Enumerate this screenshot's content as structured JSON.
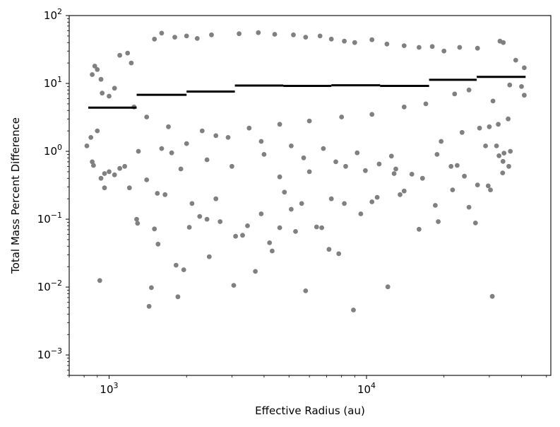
{
  "chart_data": {
    "type": "scatter",
    "title": "",
    "xlabel": "Effective Radius (au)",
    "ylabel": "Total Mass Percent Difference",
    "xscale": "log",
    "yscale": "log",
    "xlim": [
      700,
      52000
    ],
    "ylim": [
      0.0005,
      100
    ],
    "x_ticks": [
      {
        "value": 1000,
        "base": "10",
        "exp": "3"
      },
      {
        "value": 10000,
        "base": "10",
        "exp": "4"
      }
    ],
    "y_ticks": [
      {
        "value": 100,
        "base": "10",
        "exp": "2"
      },
      {
        "value": 10,
        "base": "10",
        "exp": "1"
      },
      {
        "value": 1,
        "base": "10",
        "exp": "0"
      },
      {
        "value": 0.1,
        "base": "10",
        "exp": "−1"
      },
      {
        "value": 0.01,
        "base": "10",
        "exp": "−2"
      },
      {
        "value": 0.001,
        "base": "10",
        "exp": "−3"
      }
    ],
    "grid": false,
    "point_color": "#808080",
    "median_line_color": "#000000",
    "series": [
      {
        "kind": "scatter",
        "points": [
          [
            920,
            0.0125
          ],
          [
            1430,
            0.0052
          ],
          [
            1460,
            0.0098
          ],
          [
            1850,
            0.0072
          ],
          [
            3050,
            0.0106
          ],
          [
            5800,
            0.0088
          ],
          [
            8900,
            0.0046
          ],
          [
            12100,
            0.0101
          ],
          [
            30800,
            0.0073
          ],
          [
            1820,
            0.021
          ],
          [
            1950,
            0.018
          ],
          [
            3700,
            0.017
          ],
          [
            2450,
            0.028
          ],
          [
            4300,
            0.034
          ],
          [
            7150,
            0.036
          ],
          [
            7800,
            0.031
          ],
          [
            1550,
            0.043
          ],
          [
            3100,
            0.056
          ],
          [
            3300,
            0.058
          ],
          [
            4200,
            0.045
          ],
          [
            1280,
            0.1
          ],
          [
            1290,
            0.087
          ],
          [
            1500,
            0.072
          ],
          [
            2050,
            0.076
          ],
          [
            2250,
            0.11
          ],
          [
            2400,
            0.1
          ],
          [
            2700,
            0.092
          ],
          [
            3450,
            0.08
          ],
          [
            4600,
            0.075
          ],
          [
            5300,
            0.066
          ],
          [
            6400,
            0.077
          ],
          [
            6700,
            0.075
          ],
          [
            16000,
            0.071
          ],
          [
            18500,
            0.16
          ],
          [
            19000,
            0.092
          ],
          [
            25000,
            0.15
          ],
          [
            26500,
            0.088
          ],
          [
            29700,
            0.31
          ],
          [
            30300,
            0.27
          ],
          [
            27000,
            0.32
          ],
          [
            9500,
            0.12
          ],
          [
            10500,
            0.18
          ],
          [
            11000,
            0.21
          ],
          [
            13500,
            0.23
          ],
          [
            14000,
            0.26
          ],
          [
            7300,
            0.2
          ],
          [
            8200,
            0.17
          ],
          [
            4800,
            0.25
          ],
          [
            5100,
            0.14
          ],
          [
            5600,
            0.17
          ],
          [
            3900,
            0.12
          ],
          [
            2100,
            0.17
          ],
          [
            2600,
            0.2
          ],
          [
            1650,
            0.23
          ],
          [
            1540,
            0.24
          ],
          [
            960,
            0.29
          ],
          [
            1200,
            0.29
          ],
          [
            870,
            0.62
          ],
          [
            860,
            0.7
          ],
          [
            1050,
            0.45
          ],
          [
            930,
            0.4
          ],
          [
            960,
            0.47
          ],
          [
            1000,
            0.5
          ],
          [
            1100,
            0.56
          ],
          [
            1400,
            0.38
          ],
          [
            21300,
            0.6
          ],
          [
            21600,
            0.27
          ],
          [
            22500,
            0.62
          ],
          [
            24000,
            0.43
          ],
          [
            33800,
            0.48
          ],
          [
            35700,
            0.6
          ],
          [
            30000,
            2.3
          ],
          [
            32500,
            2.5
          ],
          [
            35500,
            3.0
          ],
          [
            32700,
            0.86
          ],
          [
            34200,
            0.94
          ],
          [
            36200,
            1.0
          ],
          [
            33900,
            0.71
          ],
          [
            32000,
            1.2
          ],
          [
            15000,
            0.46
          ],
          [
            12800,
            0.47
          ],
          [
            16500,
            0.4
          ],
          [
            8300,
            0.6
          ],
          [
            6000,
            0.5
          ],
          [
            4600,
            0.42
          ],
          [
            1150,
            0.6
          ],
          [
            820,
            1.2
          ],
          [
            850,
            1.6
          ],
          [
            900,
            2.0
          ],
          [
            860,
            13.5
          ],
          [
            880,
            18
          ],
          [
            900,
            16
          ],
          [
            930,
            11.5
          ],
          [
            940,
            7.2
          ],
          [
            1000,
            6.5
          ],
          [
            1050,
            8.5
          ],
          [
            1100,
            26
          ],
          [
            1180,
            28
          ],
          [
            1220,
            20
          ],
          [
            1600,
            55
          ],
          [
            1500,
            45
          ],
          [
            1800,
            48
          ],
          [
            2000,
            50
          ],
          [
            2200,
            46
          ],
          [
            2500,
            52
          ],
          [
            3200,
            54
          ],
          [
            3800,
            56
          ],
          [
            4400,
            53
          ],
          [
            5200,
            52
          ],
          [
            5800,
            48
          ],
          [
            6600,
            50
          ],
          [
            7300,
            45
          ],
          [
            8200,
            42
          ],
          [
            9000,
            40
          ],
          [
            10500,
            44
          ],
          [
            12000,
            38
          ],
          [
            14000,
            36
          ],
          [
            16000,
            34
          ],
          [
            18000,
            35
          ],
          [
            20000,
            30
          ],
          [
            23000,
            34
          ],
          [
            27000,
            33
          ],
          [
            33000,
            42
          ],
          [
            34000,
            40
          ],
          [
            38000,
            22
          ],
          [
            41000,
            17
          ],
          [
            40000,
            9
          ],
          [
            41000,
            6.7
          ],
          [
            36000,
            9.5
          ],
          [
            31000,
            5.5
          ],
          [
            25000,
            8
          ],
          [
            22000,
            7
          ],
          [
            17000,
            5
          ],
          [
            14000,
            4.5
          ],
          [
            10500,
            3.5
          ],
          [
            8000,
            3.2
          ],
          [
            6000,
            2.8
          ],
          [
            4600,
            2.5
          ],
          [
            3500,
            2.2
          ],
          [
            2600,
            1.7
          ],
          [
            2000,
            1.3
          ],
          [
            1600,
            1.1
          ],
          [
            1300,
            1.0
          ],
          [
            1250,
            4.5
          ],
          [
            1400,
            3.2
          ],
          [
            1700,
            2.3
          ],
          [
            2300,
            2.0
          ],
          [
            2900,
            1.6
          ],
          [
            3900,
            1.4
          ],
          [
            5100,
            1.2
          ],
          [
            6800,
            1.1
          ],
          [
            9200,
            0.95
          ],
          [
            12500,
            0.85
          ],
          [
            19500,
            1.4
          ],
          [
            23500,
            1.9
          ],
          [
            27500,
            2.2
          ],
          [
            29000,
            1.2
          ],
          [
            18800,
            0.9
          ],
          [
            13000,
            0.55
          ],
          [
            11200,
            0.65
          ],
          [
            9900,
            0.52
          ],
          [
            7600,
            0.7
          ],
          [
            5700,
            0.8
          ],
          [
            4000,
            0.9
          ],
          [
            3000,
            0.6
          ],
          [
            2400,
            0.75
          ],
          [
            1900,
            0.55
          ],
          [
            1750,
            0.95
          ]
        ]
      },
      {
        "kind": "binned-median",
        "segments": [
          {
            "x0": 830,
            "x1": 1280,
            "y": 4.4
          },
          {
            "x0": 1280,
            "x1": 2000,
            "y": 6.8
          },
          {
            "x0": 2000,
            "x1": 3080,
            "y": 7.6
          },
          {
            "x0": 3080,
            "x1": 4750,
            "y": 9.3
          },
          {
            "x0": 4750,
            "x1": 7300,
            "y": 9.2
          },
          {
            "x0": 7300,
            "x1": 11300,
            "y": 9.4
          },
          {
            "x0": 11300,
            "x1": 17500,
            "y": 9.2
          },
          {
            "x0": 17500,
            "x1": 26800,
            "y": 11.3
          },
          {
            "x0": 26800,
            "x1": 41500,
            "y": 12.5
          }
        ]
      }
    ]
  }
}
